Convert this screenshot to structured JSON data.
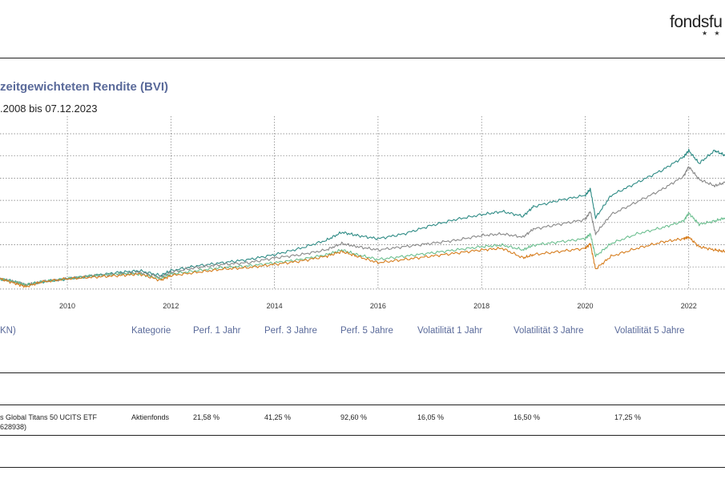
{
  "header": {
    "logo_text": "fondsfu",
    "logo_stars": "★ ★"
  },
  "chart_title": "zeitgewichteten Rendite (BVI)",
  "chart_subtitle": ".2008 bis 07.12.2023",
  "chart_data": {
    "type": "line",
    "x_tick_labels": [
      "2010",
      "2012",
      "2014",
      "2016",
      "2018",
      "2020",
      "2022"
    ],
    "x_ticks": [
      2010,
      2012,
      2014,
      2016,
      2018,
      2020,
      2022
    ],
    "xlim": [
      2008.7,
      2022.7
    ],
    "ylim": [
      0,
      1
    ],
    "grid": true,
    "series": [
      {
        "color": "#2e8b85",
        "x": [
          2008.7,
          2009.0,
          2009.2,
          2009.5,
          2010.0,
          2010.5,
          2011.0,
          2011.4,
          2011.8,
          2012.0,
          2012.5,
          2013.0,
          2013.5,
          2014.0,
          2014.5,
          2015.0,
          2015.3,
          2015.6,
          2016.0,
          2016.5,
          2017.0,
          2017.5,
          2018.0,
          2018.4,
          2018.8,
          2019.0,
          2019.5,
          2020.0,
          2020.1,
          2020.2,
          2020.5,
          2021.0,
          2021.5,
          2021.9,
          2022.0,
          2022.2,
          2022.5,
          2022.7
        ],
        "values": [
          0.06,
          0.04,
          0.02,
          0.04,
          0.06,
          0.08,
          0.1,
          0.11,
          0.08,
          0.11,
          0.14,
          0.16,
          0.18,
          0.21,
          0.25,
          0.3,
          0.35,
          0.33,
          0.31,
          0.34,
          0.39,
          0.43,
          0.46,
          0.48,
          0.45,
          0.51,
          0.55,
          0.58,
          0.62,
          0.44,
          0.58,
          0.66,
          0.74,
          0.82,
          0.86,
          0.78,
          0.86,
          0.83
        ]
      },
      {
        "color": "#888888",
        "x": [
          2008.7,
          2009.0,
          2009.2,
          2009.5,
          2010.0,
          2010.5,
          2011.0,
          2011.4,
          2011.8,
          2012.0,
          2012.5,
          2013.0,
          2013.5,
          2014.0,
          2014.5,
          2015.0,
          2015.3,
          2015.6,
          2016.0,
          2016.5,
          2017.0,
          2017.5,
          2018.0,
          2018.4,
          2018.8,
          2019.0,
          2019.5,
          2020.0,
          2020.1,
          2020.2,
          2020.5,
          2021.0,
          2021.5,
          2021.9,
          2022.0,
          2022.2,
          2022.5,
          2022.7
        ],
        "values": [
          0.06,
          0.04,
          0.02,
          0.04,
          0.06,
          0.08,
          0.09,
          0.1,
          0.07,
          0.1,
          0.13,
          0.15,
          0.16,
          0.19,
          0.21,
          0.24,
          0.28,
          0.26,
          0.24,
          0.26,
          0.28,
          0.3,
          0.33,
          0.34,
          0.32,
          0.37,
          0.4,
          0.43,
          0.48,
          0.34,
          0.46,
          0.54,
          0.62,
          0.7,
          0.76,
          0.68,
          0.64,
          0.66
        ]
      },
      {
        "color": "#6cbf90",
        "x": [
          2008.7,
          2009.0,
          2009.2,
          2009.5,
          2010.0,
          2010.5,
          2011.0,
          2011.4,
          2011.8,
          2012.0,
          2012.5,
          2013.0,
          2013.5,
          2014.0,
          2014.5,
          2015.0,
          2015.3,
          2015.6,
          2016.0,
          2016.5,
          2017.0,
          2017.5,
          2018.0,
          2018.4,
          2018.8,
          2019.0,
          2019.5,
          2020.0,
          2020.1,
          2020.2,
          2020.5,
          2021.0,
          2021.5,
          2021.9,
          2022.0,
          2022.2,
          2022.5,
          2022.7
        ],
        "values": [
          0.06,
          0.04,
          0.02,
          0.04,
          0.06,
          0.08,
          0.09,
          0.09,
          0.06,
          0.09,
          0.11,
          0.13,
          0.14,
          0.16,
          0.18,
          0.21,
          0.24,
          0.21,
          0.18,
          0.2,
          0.22,
          0.24,
          0.26,
          0.27,
          0.24,
          0.27,
          0.29,
          0.31,
          0.34,
          0.2,
          0.28,
          0.34,
          0.38,
          0.42,
          0.47,
          0.4,
          0.42,
          0.44
        ]
      },
      {
        "color": "#d67d1e",
        "x": [
          2008.7,
          2009.0,
          2009.2,
          2009.5,
          2010.0,
          2010.5,
          2011.0,
          2011.4,
          2011.8,
          2012.0,
          2012.5,
          2013.0,
          2013.5,
          2014.0,
          2014.5,
          2015.0,
          2015.3,
          2015.6,
          2016.0,
          2016.5,
          2017.0,
          2017.5,
          2018.0,
          2018.4,
          2018.8,
          2019.0,
          2019.5,
          2020.0,
          2020.1,
          2020.2,
          2020.5,
          2021.0,
          2021.5,
          2021.9,
          2022.0,
          2022.2,
          2022.5,
          2022.7
        ],
        "values": [
          0.06,
          0.03,
          0.01,
          0.04,
          0.06,
          0.07,
          0.08,
          0.09,
          0.05,
          0.08,
          0.1,
          0.12,
          0.13,
          0.15,
          0.17,
          0.2,
          0.23,
          0.2,
          0.16,
          0.18,
          0.2,
          0.22,
          0.24,
          0.25,
          0.19,
          0.21,
          0.23,
          0.25,
          0.28,
          0.12,
          0.2,
          0.25,
          0.29,
          0.31,
          0.32,
          0.26,
          0.24,
          0.23
        ]
      }
    ]
  },
  "table": {
    "headers": [
      "KN)",
      "Kategorie",
      "Perf. 1 Jahr",
      "Perf. 3 Jahre",
      "Perf. 5 Jahre",
      "Volatilität 1 Jahr",
      "Volatilität 3 Jahre",
      "Volatilität 5 Jahre"
    ],
    "row": {
      "name_line1": "s Global Titans 50 UCITS ETF",
      "name_line2": " 628938)",
      "category": "Aktienfonds",
      "perf_1y": "21,58 %",
      "perf_3y": "41,25 %",
      "perf_5y": "92,60 %",
      "vol_1y": "16,05 %",
      "vol_3y": "16,50 %",
      "vol_5y": "17,25 %"
    }
  }
}
